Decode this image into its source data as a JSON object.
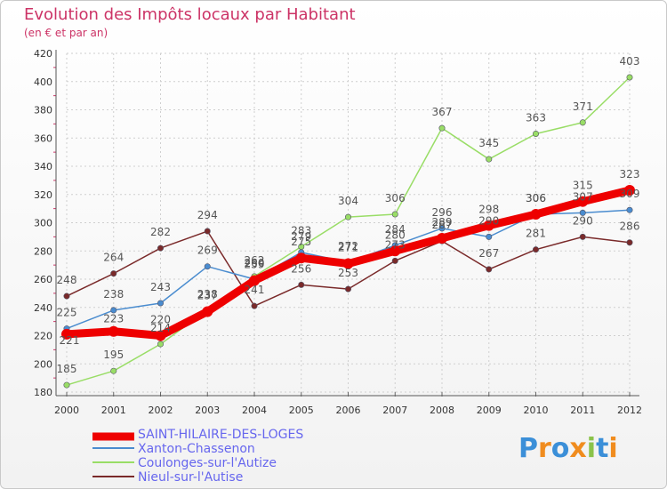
{
  "chart_data": {
    "type": "line",
    "title": "Evolution des Impôts locaux par Habitant",
    "subtitle": "(en € et par an)",
    "categories": [
      "2000",
      "2001",
      "2002",
      "2003",
      "2004",
      "2005",
      "2006",
      "2007",
      "2008",
      "2009",
      "2010",
      "2011",
      "2012"
    ],
    "ylim": [
      180,
      420
    ],
    "yticks": [
      180,
      200,
      220,
      240,
      260,
      280,
      300,
      320,
      340,
      360,
      380,
      400,
      420
    ],
    "series": [
      {
        "name": "SAINT-HILAIRE-DES-LOGES",
        "color": "#ee0000",
        "values": [
          221,
          223,
          220,
          237,
          259,
          275,
          271,
          280,
          289,
          298,
          306,
          315,
          323
        ]
      },
      {
        "name": "Xanton-Chassenon",
        "color": "#4a8ccf",
        "values": [
          225,
          238,
          243,
          269,
          260,
          279,
          272,
          284,
          296,
          290,
          306,
          307,
          309
        ]
      },
      {
        "name": "Coulonges-sur-l'Autize",
        "color": "#99dd66",
        "values": [
          185,
          195,
          214,
          238,
          262,
          283,
          304,
          306,
          367,
          345,
          363,
          371,
          403
        ]
      },
      {
        "name": "Nieul-sur-l'Autise",
        "color": "#7a2a2a",
        "values": [
          248,
          264,
          282,
          294,
          241,
          256,
          253,
          273,
          287,
          267,
          281,
          290,
          286
        ]
      }
    ]
  },
  "legend": [
    {
      "label": "SAINT-HILAIRE-DES-LOGES"
    },
    {
      "label": "Xanton-Chassenon"
    },
    {
      "label": "Coulonges-sur-l'Autize"
    },
    {
      "label": "Nieul-sur-l'Autise"
    }
  ],
  "logo": {
    "text": "Proxiti",
    "letters": [
      "P",
      "r",
      "o",
      "x",
      "i",
      "t",
      "i"
    ],
    "colors": [
      "#3b8fd8",
      "#f08c1e",
      "#3b8fd8",
      "#f08c1e",
      "#8bc34a",
      "#3b8fd8",
      "#f08c1e"
    ]
  }
}
